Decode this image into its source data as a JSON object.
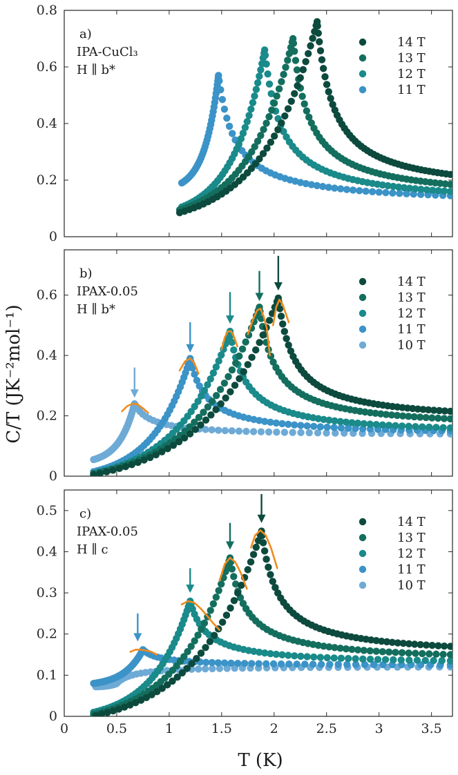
{
  "figure": {
    "ylabel": "C/T (JK⁻²mol⁻¹)",
    "xlabel": "T (K)"
  },
  "chart_data": [
    {
      "type": "scatter",
      "panel_label": "a)",
      "text_lines": [
        "IPA-CuCl₃",
        "H ∥ b*"
      ],
      "xlim": [
        0,
        3.7
      ],
      "ylim": [
        0,
        0.8
      ],
      "xticks": [
        0,
        0.5,
        1,
        1.5,
        2,
        2.5,
        3,
        3.5
      ],
      "xtick_labels": [
        "",
        "",
        "",
        "",
        "",
        "",
        "",
        ""
      ],
      "yticks": [
        0,
        0.2,
        0.4,
        0.6,
        0.8
      ],
      "ytick_labels": [
        "0",
        "0.2",
        "0.4",
        "0.6",
        "0.8"
      ],
      "legend_position": "top-right",
      "series": [
        {
          "name": "14 T",
          "color": "#0d4a3e",
          "tc": 2.41,
          "peak": 0.76,
          "start": 1.1,
          "y_start": 0.085,
          "end": 3.68,
          "y_end": 0.22
        },
        {
          "name": "13 T",
          "color": "#146e5e",
          "tc": 2.18,
          "peak": 0.7,
          "start": 1.1,
          "y_start": 0.095,
          "end": 3.68,
          "y_end": 0.185
        },
        {
          "name": "12 T",
          "color": "#1a8a8a",
          "tc": 1.91,
          "peak": 0.66,
          "start": 1.12,
          "y_start": 0.105,
          "end": 3.68,
          "y_end": 0.16
        },
        {
          "name": "11 T",
          "color": "#3b93c7",
          "tc": 1.47,
          "peak": 0.57,
          "start": 1.12,
          "y_start": 0.19,
          "end": 3.68,
          "y_end": 0.145
        }
      ],
      "fits": [],
      "arrows": []
    },
    {
      "type": "scatter",
      "panel_label": "b)",
      "text_lines": [
        "IPAX-0.05",
        "H ∥ b*"
      ],
      "xlim": [
        0,
        3.7
      ],
      "ylim": [
        0,
        0.75
      ],
      "xticks": [
        0,
        0.5,
        1,
        1.5,
        2,
        2.5,
        3,
        3.5
      ],
      "xtick_labels": [
        "",
        "",
        "",
        "",
        "",
        "",
        "",
        ""
      ],
      "yticks": [
        0,
        0.2,
        0.4,
        0.6
      ],
      "ytick_labels": [
        "0",
        "0.2",
        "0.4",
        "0.6"
      ],
      "legend_position": "top-right",
      "series": [
        {
          "name": "14 T",
          "color": "#0d4a3e",
          "tc": 2.04,
          "peak": 0.59,
          "start": 0.28,
          "y_start": 0.005,
          "end": 3.68,
          "y_end": 0.215
        },
        {
          "name": "13 T",
          "color": "#146e5e",
          "tc": 1.86,
          "peak": 0.56,
          "start": 0.28,
          "y_start": 0.008,
          "end": 3.68,
          "y_end": 0.19
        },
        {
          "name": "12 T",
          "color": "#1a8a8a",
          "tc": 1.58,
          "peak": 0.48,
          "start": 0.28,
          "y_start": 0.01,
          "end": 3.68,
          "y_end": 0.16
        },
        {
          "name": "11 T",
          "color": "#3b93c7",
          "tc": 1.2,
          "peak": 0.39,
          "start": 0.28,
          "y_start": 0.015,
          "end": 3.68,
          "y_end": 0.15
        },
        {
          "name": "10 T",
          "color": "#6eaad6",
          "tc": 0.67,
          "peak": 0.24,
          "start": 0.28,
          "y_start": 0.055,
          "end": 3.68,
          "y_end": 0.14
        }
      ],
      "fits": [
        {
          "series": "14 T",
          "x": [
            1.99,
            2.02,
            2.05,
            2.08,
            2.11,
            2.14
          ],
          "y": [
            0.5,
            0.56,
            0.585,
            0.57,
            0.54,
            0.51
          ]
        },
        {
          "series": "13 T",
          "x": [
            1.75,
            1.8,
            1.84,
            1.87,
            1.9,
            1.93,
            1.96
          ],
          "y": [
            0.47,
            0.52,
            0.55,
            0.555,
            0.53,
            0.49,
            0.4
          ]
        },
        {
          "series": "12 T",
          "x": [
            1.5,
            1.53,
            1.56,
            1.59,
            1.62,
            1.65
          ],
          "y": [
            0.42,
            0.46,
            0.48,
            0.48,
            0.46,
            0.43
          ]
        },
        {
          "series": "11 T",
          "x": [
            1.1,
            1.15,
            1.2,
            1.24,
            1.28
          ],
          "y": [
            0.35,
            0.38,
            0.39,
            0.375,
            0.34
          ]
        },
        {
          "series": "10 T",
          "x": [
            0.55,
            0.6,
            0.65,
            0.7,
            0.75,
            0.8
          ],
          "y": [
            0.215,
            0.232,
            0.24,
            0.238,
            0.225,
            0.21
          ]
        }
      ],
      "arrows": [
        {
          "series": "14 T",
          "x": 2.04,
          "y_from": 0.73,
          "y_to": 0.615
        },
        {
          "series": "13 T",
          "x": 1.86,
          "y_from": 0.68,
          "y_to": 0.58
        },
        {
          "series": "12 T",
          "x": 1.58,
          "y_from": 0.61,
          "y_to": 0.505
        },
        {
          "series": "11 T",
          "x": 1.2,
          "y_from": 0.51,
          "y_to": 0.41
        },
        {
          "series": "10 T",
          "x": 0.67,
          "y_from": 0.36,
          "y_to": 0.26
        }
      ]
    },
    {
      "type": "scatter",
      "panel_label": "c)",
      "text_lines": [
        "IPAX-0.05",
        "H ∥ c"
      ],
      "xlim": [
        0,
        3.7
      ],
      "ylim": [
        0,
        0.55
      ],
      "xticks": [
        0,
        0.5,
        1,
        1.5,
        2,
        2.5,
        3,
        3.5
      ],
      "xtick_labels": [
        "0",
        "0.5",
        "1",
        "1.5",
        "2",
        "2.5",
        "3",
        "3.5"
      ],
      "yticks": [
        0,
        0.1,
        0.2,
        0.3,
        0.4,
        0.5
      ],
      "ytick_labels": [
        "0",
        "0.1",
        "0.2",
        "0.3",
        "0.4",
        "0.5"
      ],
      "legend_position": "top-right",
      "series": [
        {
          "name": "14 T",
          "color": "#0d4a3e",
          "tc": 1.88,
          "peak": 0.45,
          "start": 0.3,
          "y_start": 0.002,
          "end": 3.68,
          "y_end": 0.17
        },
        {
          "name": "13 T",
          "color": "#146e5e",
          "tc": 1.58,
          "peak": 0.385,
          "start": 0.28,
          "y_start": 0.005,
          "end": 3.68,
          "y_end": 0.15
        },
        {
          "name": "12 T",
          "color": "#1a8a8a",
          "tc": 1.2,
          "peak": 0.28,
          "start": 0.28,
          "y_start": 0.01,
          "end": 3.68,
          "y_end": 0.135
        },
        {
          "name": "11 T",
          "color": "#3b93c7",
          "tc": 0.75,
          "peak": 0.162,
          "start": 0.28,
          "y_start": 0.08,
          "end": 3.68,
          "y_end": 0.125
        },
        {
          "name": "10 T",
          "color": "#6eaad6",
          "tc": 0.5,
          "peak": 0.08,
          "start": 0.3,
          "y_start": 0.072,
          "end": 3.68,
          "y_end": 0.12
        }
      ],
      "fits": [
        {
          "series": "14 T",
          "x": [
            1.78,
            1.82,
            1.87,
            1.92,
            1.97,
            2.03
          ],
          "y": [
            0.41,
            0.44,
            0.452,
            0.44,
            0.41,
            0.36
          ]
        },
        {
          "series": "13 T",
          "x": [
            1.48,
            1.53,
            1.58,
            1.63,
            1.68,
            1.74
          ],
          "y": [
            0.33,
            0.37,
            0.385,
            0.375,
            0.35,
            0.31
          ]
        },
        {
          "series": "12 T",
          "x": [
            1.12,
            1.18,
            1.24,
            1.3,
            1.36,
            1.42,
            1.48
          ],
          "y": [
            0.272,
            0.28,
            0.276,
            0.262,
            0.245,
            0.226,
            0.21
          ]
        },
        {
          "series": "11 T",
          "x": [
            0.63,
            0.68,
            0.73,
            0.78,
            0.83,
            0.88
          ],
          "y": [
            0.157,
            0.162,
            0.162,
            0.16,
            0.157,
            0.15
          ]
        }
      ],
      "arrows": [
        {
          "series": "14 T",
          "x": 1.88,
          "y_from": 0.54,
          "y_to": 0.47
        },
        {
          "series": "13 T",
          "x": 1.58,
          "y_from": 0.47,
          "y_to": 0.405
        },
        {
          "series": "12 T",
          "x": 1.2,
          "y_from": 0.36,
          "y_to": 0.3
        },
        {
          "series": "11 T",
          "x": 0.7,
          "y_from": 0.25,
          "y_to": 0.182
        }
      ]
    }
  ]
}
